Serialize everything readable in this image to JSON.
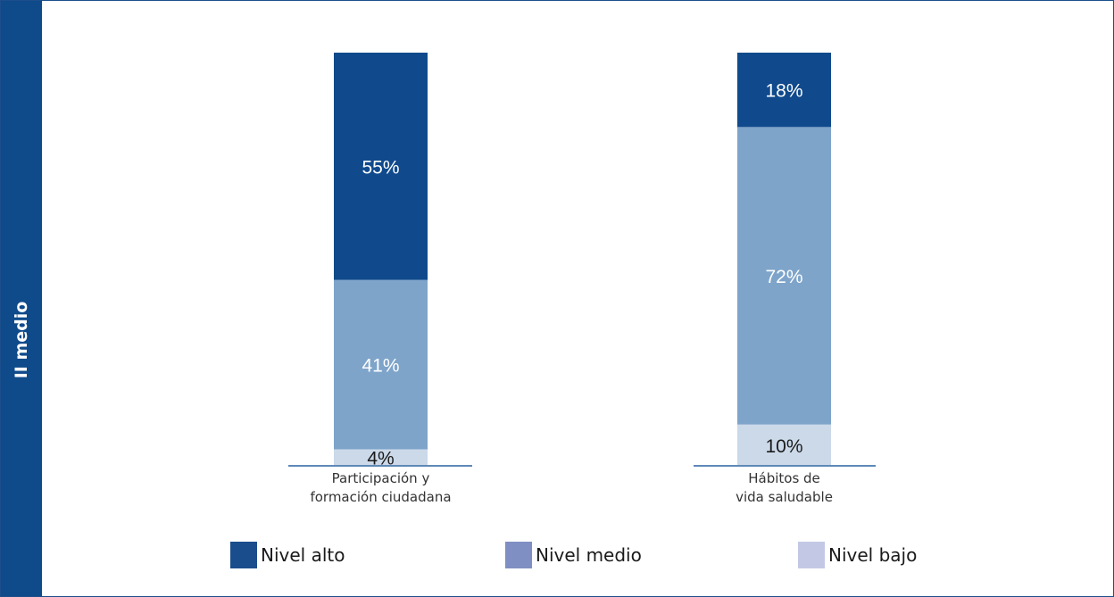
{
  "side_label": "II medio",
  "colors": {
    "frame": "#1b4f8c",
    "sidebar": "#0f4a8a",
    "nivel_alto": "#104a8c",
    "nivel_medio": "#7ea4ca",
    "nivel_bajo": "#cbd9e9",
    "legend_alto": "#1a4d8c",
    "legend_medio": "#7f8fc3",
    "legend_bajo": "#c3c9e4",
    "axis": "#5f88b8"
  },
  "chart_data": {
    "type": "bar",
    "stacked": true,
    "categories": [
      [
        "Participación y",
        "formación ciudadana"
      ],
      [
        "Hábitos de",
        "vida saludable"
      ]
    ],
    "series": [
      {
        "name": "Nivel bajo",
        "values": [
          4,
          10
        ],
        "labels": [
          "4%",
          "10%"
        ]
      },
      {
        "name": "Nivel medio",
        "values": [
          41,
          72
        ],
        "labels": [
          "41%",
          "72%"
        ]
      },
      {
        "name": "Nivel alto",
        "values": [
          55,
          18
        ],
        "labels": [
          "55%",
          "18%"
        ]
      }
    ],
    "ylim": [
      0,
      100
    ],
    "grid": false,
    "legend_position": "bottom"
  },
  "legend": [
    {
      "label": "Nivel alto"
    },
    {
      "label": "Nivel medio"
    },
    {
      "label": "Nivel bajo"
    }
  ]
}
